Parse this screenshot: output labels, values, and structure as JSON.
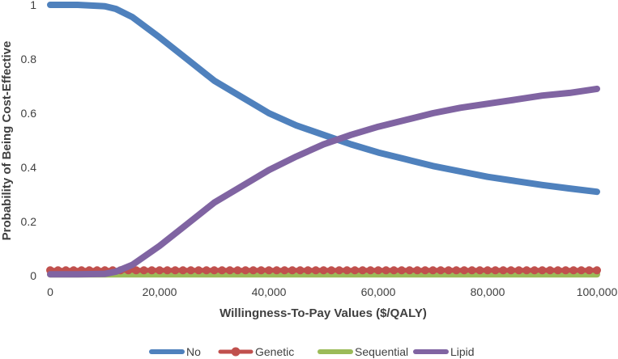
{
  "chart_data": {
    "type": "line",
    "title": "",
    "xlabel": "Willingness-To-Pay Values ($/QALY)",
    "ylabel": "Probability of Being Cost-Effective",
    "xlim": [
      0,
      100000
    ],
    "ylim": [
      0,
      1
    ],
    "x_ticks": [
      0,
      20000,
      40000,
      60000,
      80000,
      100000
    ],
    "x_tick_labels": [
      "0",
      "20,000",
      "40,000",
      "60,000",
      "80,000",
      "100,000"
    ],
    "y_ticks": [
      0,
      0.2,
      0.4,
      0.6,
      0.8,
      1
    ],
    "y_tick_labels": [
      "0",
      "0.2",
      "0.4",
      "0.6",
      "0.8",
      "1"
    ],
    "grid": false,
    "legend_position": "bottom",
    "x": [
      0,
      5000,
      10000,
      12000,
      15000,
      20000,
      25000,
      30000,
      35000,
      40000,
      45000,
      50000,
      55000,
      60000,
      65000,
      70000,
      75000,
      80000,
      85000,
      90000,
      95000,
      100000
    ],
    "series": [
      {
        "name": "No",
        "color": "#4f81bd",
        "marker": "none",
        "values": [
          1.0,
          1.0,
          0.995,
          0.985,
          0.955,
          0.88,
          0.8,
          0.72,
          0.66,
          0.6,
          0.555,
          0.52,
          0.485,
          0.455,
          0.43,
          0.405,
          0.385,
          0.365,
          0.35,
          0.335,
          0.322,
          0.31
        ]
      },
      {
        "name": "Genetic",
        "color": "#c0504d",
        "marker": "circle",
        "values": [
          0.02,
          0.02,
          0.02,
          0.02,
          0.02,
          0.02,
          0.02,
          0.02,
          0.02,
          0.02,
          0.02,
          0.02,
          0.02,
          0.02,
          0.02,
          0.02,
          0.02,
          0.02,
          0.02,
          0.02,
          0.02,
          0.02
        ]
      },
      {
        "name": "Sequential",
        "color": "#9bbb59",
        "marker": "none",
        "values": [
          0.005,
          0.005,
          0.005,
          0.005,
          0.005,
          0.005,
          0.005,
          0.005,
          0.005,
          0.005,
          0.005,
          0.005,
          0.005,
          0.005,
          0.005,
          0.005,
          0.005,
          0.005,
          0.005,
          0.005,
          0.005,
          0.005
        ]
      },
      {
        "name": "Lipid",
        "color": "#8064a2",
        "marker": "none",
        "values": [
          0.005,
          0.005,
          0.007,
          0.015,
          0.04,
          0.11,
          0.19,
          0.27,
          0.33,
          0.39,
          0.44,
          0.485,
          0.52,
          0.55,
          0.575,
          0.6,
          0.62,
          0.635,
          0.65,
          0.665,
          0.675,
          0.69
        ]
      }
    ]
  }
}
